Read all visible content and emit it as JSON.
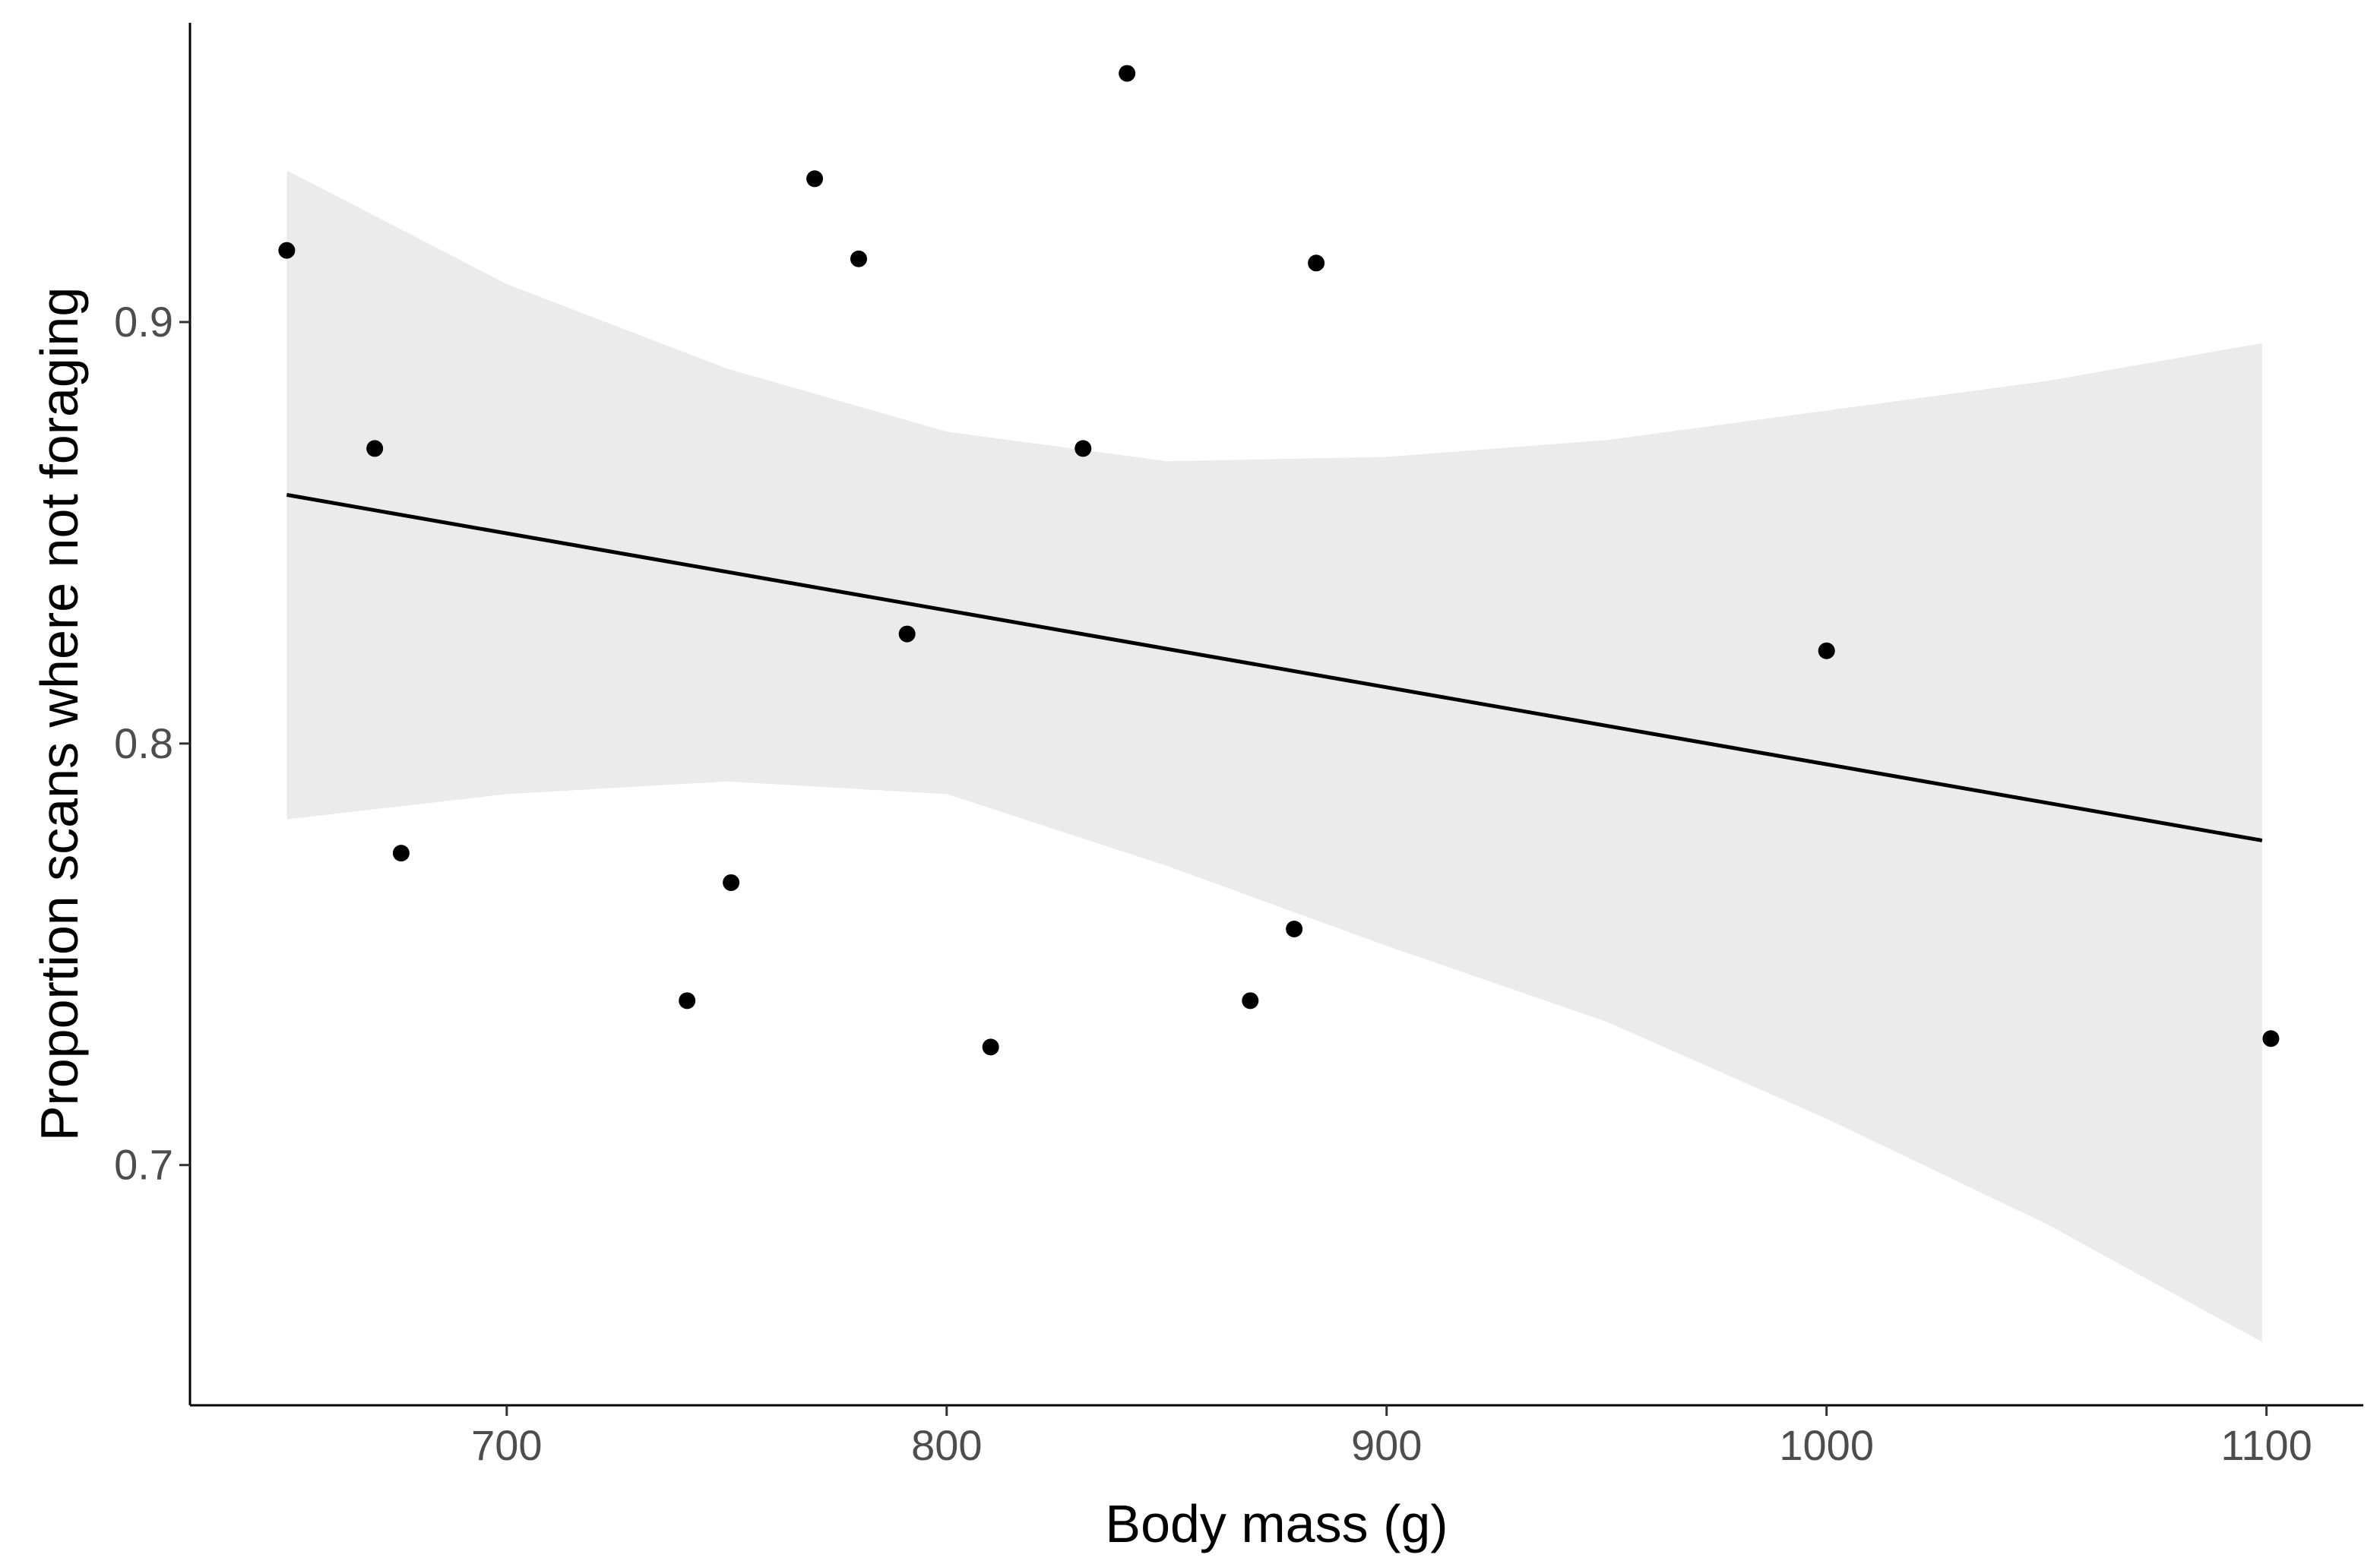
{
  "chart_data": {
    "type": "scatter",
    "title": "",
    "xlabel": "Body mass (g)",
    "ylabel": "Proportion scans where not foraging",
    "xlim": [
      628,
      1122
    ],
    "ylim": [
      0.643,
      0.971
    ],
    "x_ticks": [
      700,
      800,
      900,
      1000,
      1100
    ],
    "x_tick_labels": [
      "700",
      "800",
      "900",
      "1000",
      "1100"
    ],
    "y_ticks": [
      0.7,
      0.8,
      0.9
    ],
    "y_tick_labels": [
      "0.7",
      "0.8",
      "0.9"
    ],
    "grid": false,
    "legend": "none",
    "points": [
      {
        "x": 650,
        "y": 0.917
      },
      {
        "x": 670,
        "y": 0.87
      },
      {
        "x": 676,
        "y": 0.774
      },
      {
        "x": 741,
        "y": 0.739
      },
      {
        "x": 751,
        "y": 0.767
      },
      {
        "x": 770,
        "y": 0.934
      },
      {
        "x": 780,
        "y": 0.915
      },
      {
        "x": 791,
        "y": 0.826
      },
      {
        "x": 810,
        "y": 0.728
      },
      {
        "x": 831,
        "y": 0.87
      },
      {
        "x": 841,
        "y": 0.959
      },
      {
        "x": 869,
        "y": 0.739
      },
      {
        "x": 879,
        "y": 0.756
      },
      {
        "x": 884,
        "y": 0.914
      },
      {
        "x": 1000,
        "y": 0.822
      },
      {
        "x": 1101,
        "y": 0.73
      }
    ],
    "regression_line": {
      "x": [
        650,
        1099
      ],
      "y": [
        0.859,
        0.777
      ]
    },
    "confidence_band": {
      "x": [
        650,
        700,
        750,
        800,
        850,
        900,
        950,
        1000,
        1050,
        1099
      ],
      "upper": [
        0.936,
        0.909,
        0.889,
        0.874,
        0.867,
        0.868,
        0.872,
        0.879,
        0.886,
        0.895
      ],
      "lower": [
        0.782,
        0.788,
        0.791,
        0.788,
        0.771,
        0.752,
        0.734,
        0.711,
        0.686,
        0.658
      ]
    },
    "colors": {
      "points": "#000000",
      "line": "#000000",
      "band": "#ebebeb",
      "axis": "#000000"
    }
  }
}
